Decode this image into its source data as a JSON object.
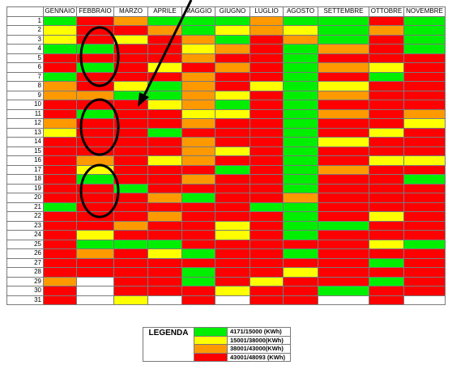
{
  "months": [
    "GENNAIO",
    "FEBBRAIO",
    "MARZO",
    "APRILE",
    "MAGGIO",
    "GIUGNO",
    "LUGLIO",
    "AGOSTO",
    "SETTEMBRE",
    "OTTOBRE",
    "NOVEMBRE"
  ],
  "days": [
    "1",
    "2",
    "3",
    "4",
    "5",
    "6",
    "7",
    "8",
    "9",
    "10",
    "11",
    "12",
    "13",
    "14",
    "15",
    "16",
    "17",
    "18",
    "19",
    "20",
    "21",
    "22",
    "23",
    "24",
    "25",
    "26",
    "27",
    "28",
    "29",
    "30",
    "31"
  ],
  "colors": {
    "G": "#00ee00",
    "Y": "#ffff00",
    "O": "#ff9900",
    "R": "#ff0000",
    "W": "#ffffff"
  },
  "cells": [
    [
      "G",
      "R",
      "O",
      "G",
      "G",
      "G",
      "O",
      "G",
      "G",
      "R",
      "G"
    ],
    [
      "Y",
      "R",
      "R",
      "O",
      "G",
      "Y",
      "O",
      "Y",
      "G",
      "O",
      "G"
    ],
    [
      "Y",
      "R",
      "Y",
      "R",
      "O",
      "G",
      "R",
      "O",
      "G",
      "R",
      "G"
    ],
    [
      "G",
      "G",
      "R",
      "R",
      "Y",
      "O",
      "R",
      "G",
      "O",
      "R",
      "G"
    ],
    [
      "R",
      "R",
      "R",
      "R",
      "O",
      "R",
      "R",
      "G",
      "R",
      "R",
      "R"
    ],
    [
      "R",
      "G",
      "R",
      "Y",
      "R",
      "O",
      "R",
      "G",
      "O",
      "Y",
      "R"
    ],
    [
      "G",
      "R",
      "R",
      "R",
      "O",
      "R",
      "R",
      "G",
      "R",
      "G",
      "R"
    ],
    [
      "O",
      "R",
      "Y",
      "G",
      "O",
      "R",
      "Y",
      "G",
      "Y",
      "R",
      "R"
    ],
    [
      "O",
      "O",
      "G",
      "G",
      "O",
      "Y",
      "R",
      "G",
      "O",
      "R",
      "R"
    ],
    [
      "R",
      "R",
      "R",
      "Y",
      "O",
      "G",
      "R",
      "G",
      "R",
      "R",
      "R"
    ],
    [
      "R",
      "G",
      "R",
      "R",
      "Y",
      "Y",
      "R",
      "G",
      "O",
      "R",
      "O"
    ],
    [
      "O",
      "R",
      "R",
      "R",
      "O",
      "R",
      "R",
      "G",
      "R",
      "R",
      "Y"
    ],
    [
      "Y",
      "R",
      "R",
      "G",
      "R",
      "R",
      "R",
      "G",
      "R",
      "Y",
      "R"
    ],
    [
      "R",
      "R",
      "R",
      "R",
      "O",
      "R",
      "R",
      "G",
      "Y",
      "R",
      "R"
    ],
    [
      "R",
      "R",
      "R",
      "R",
      "O",
      "Y",
      "R",
      "G",
      "R",
      "R",
      "R"
    ],
    [
      "R",
      "O",
      "R",
      "Y",
      "O",
      "R",
      "R",
      "G",
      "R",
      "Y",
      "Y"
    ],
    [
      "R",
      "Y",
      "R",
      "R",
      "R",
      "G",
      "R",
      "G",
      "O",
      "R",
      "R"
    ],
    [
      "R",
      "G",
      "R",
      "R",
      "O",
      "R",
      "R",
      "G",
      "R",
      "R",
      "G"
    ],
    [
      "R",
      "R",
      "G",
      "R",
      "R",
      "R",
      "R",
      "G",
      "R",
      "R",
      "R"
    ],
    [
      "R",
      "R",
      "R",
      "O",
      "G",
      "R",
      "R",
      "O",
      "R",
      "R",
      "R"
    ],
    [
      "G",
      "R",
      "R",
      "R",
      "R",
      "R",
      "G",
      "G",
      "R",
      "R",
      "R"
    ],
    [
      "R",
      "R",
      "R",
      "O",
      "R",
      "R",
      "R",
      "G",
      "R",
      "Y",
      "R"
    ],
    [
      "R",
      "R",
      "O",
      "R",
      "R",
      "Y",
      "R",
      "G",
      "G",
      "R",
      "R"
    ],
    [
      "R",
      "Y",
      "R",
      "R",
      "R",
      "Y",
      "R",
      "G",
      "R",
      "R",
      "R"
    ],
    [
      "R",
      "G",
      "G",
      "G",
      "R",
      "R",
      "R",
      "R",
      "R",
      "Y",
      "G"
    ],
    [
      "R",
      "O",
      "R",
      "Y",
      "G",
      "R",
      "R",
      "G",
      "R",
      "R",
      "R"
    ],
    [
      "R",
      "R",
      "R",
      "R",
      "R",
      "R",
      "R",
      "R",
      "R",
      "G",
      "R"
    ],
    [
      "R",
      "R",
      "R",
      "R",
      "G",
      "R",
      "R",
      "Y",
      "R",
      "R",
      "R"
    ],
    [
      "O",
      "W",
      "R",
      "R",
      "G",
      "R",
      "Y",
      "R",
      "R",
      "G",
      "R"
    ],
    [
      "R",
      "W",
      "R",
      "R",
      "R",
      "Y",
      "R",
      "R",
      "G",
      "R",
      "R"
    ],
    [
      "R",
      "W",
      "Y",
      "W",
      "R",
      "W",
      "R",
      "R",
      "W",
      "R",
      "W"
    ]
  ],
  "legend": {
    "title": "LEGENDA",
    "items": [
      {
        "color": "#00ee00",
        "label": "4171/15000 (KWh)"
      },
      {
        "color": "#ffff00",
        "label": "15001/38000(KWh)"
      },
      {
        "color": "#ff9900",
        "label": "38001/43000(KWh)"
      },
      {
        "color": "#ff0000",
        "label": "43001/48093 (KWh)"
      }
    ]
  }
}
